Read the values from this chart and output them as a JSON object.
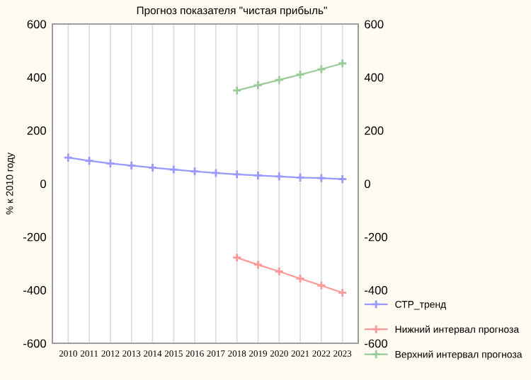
{
  "chart_data": {
    "type": "line",
    "title": "Прогноз показателя \"чистая прибыль\"",
    "ylabel": "% к 2010 году",
    "x": [
      2010,
      2011,
      2012,
      2013,
      2014,
      2015,
      2016,
      2017,
      2018,
      2019,
      2020,
      2021,
      2022,
      2023
    ],
    "series": [
      {
        "name": "СТР_тренд",
        "color": "#9999ff",
        "values": [
          98,
          86,
          76,
          68,
          60,
          53,
          46,
          40,
          35,
          31,
          27,
          23,
          21,
          17
        ]
      },
      {
        "name": "Нижний интервал прогноза",
        "color": "#ff9999",
        "values": [
          null,
          null,
          null,
          null,
          null,
          null,
          null,
          null,
          -278,
          -305,
          -330,
          -357,
          -383,
          -410
        ]
      },
      {
        "name": "Верхний интервал прогноза",
        "color": "#99cc99",
        "values": [
          null,
          null,
          null,
          null,
          null,
          null,
          null,
          null,
          350,
          370,
          390,
          410,
          430,
          452
        ]
      }
    ],
    "xlim": [
      2009.25,
      2023.75
    ],
    "xticks": [
      2010,
      2011,
      2012,
      2013,
      2014,
      2015,
      2016,
      2017,
      2018,
      2019,
      2020,
      2021,
      2022,
      2023
    ],
    "ylim": [
      -600,
      600
    ],
    "yticks": [
      -600,
      -400,
      -200,
      0,
      200,
      400,
      600
    ],
    "y2lim": [
      -600,
      600
    ],
    "y2ticks": [
      -600,
      -400,
      -200,
      0,
      200,
      400,
      600
    ],
    "grid": "x",
    "legend": "bottom right",
    "marker": "cross",
    "line_style": "solid"
  }
}
